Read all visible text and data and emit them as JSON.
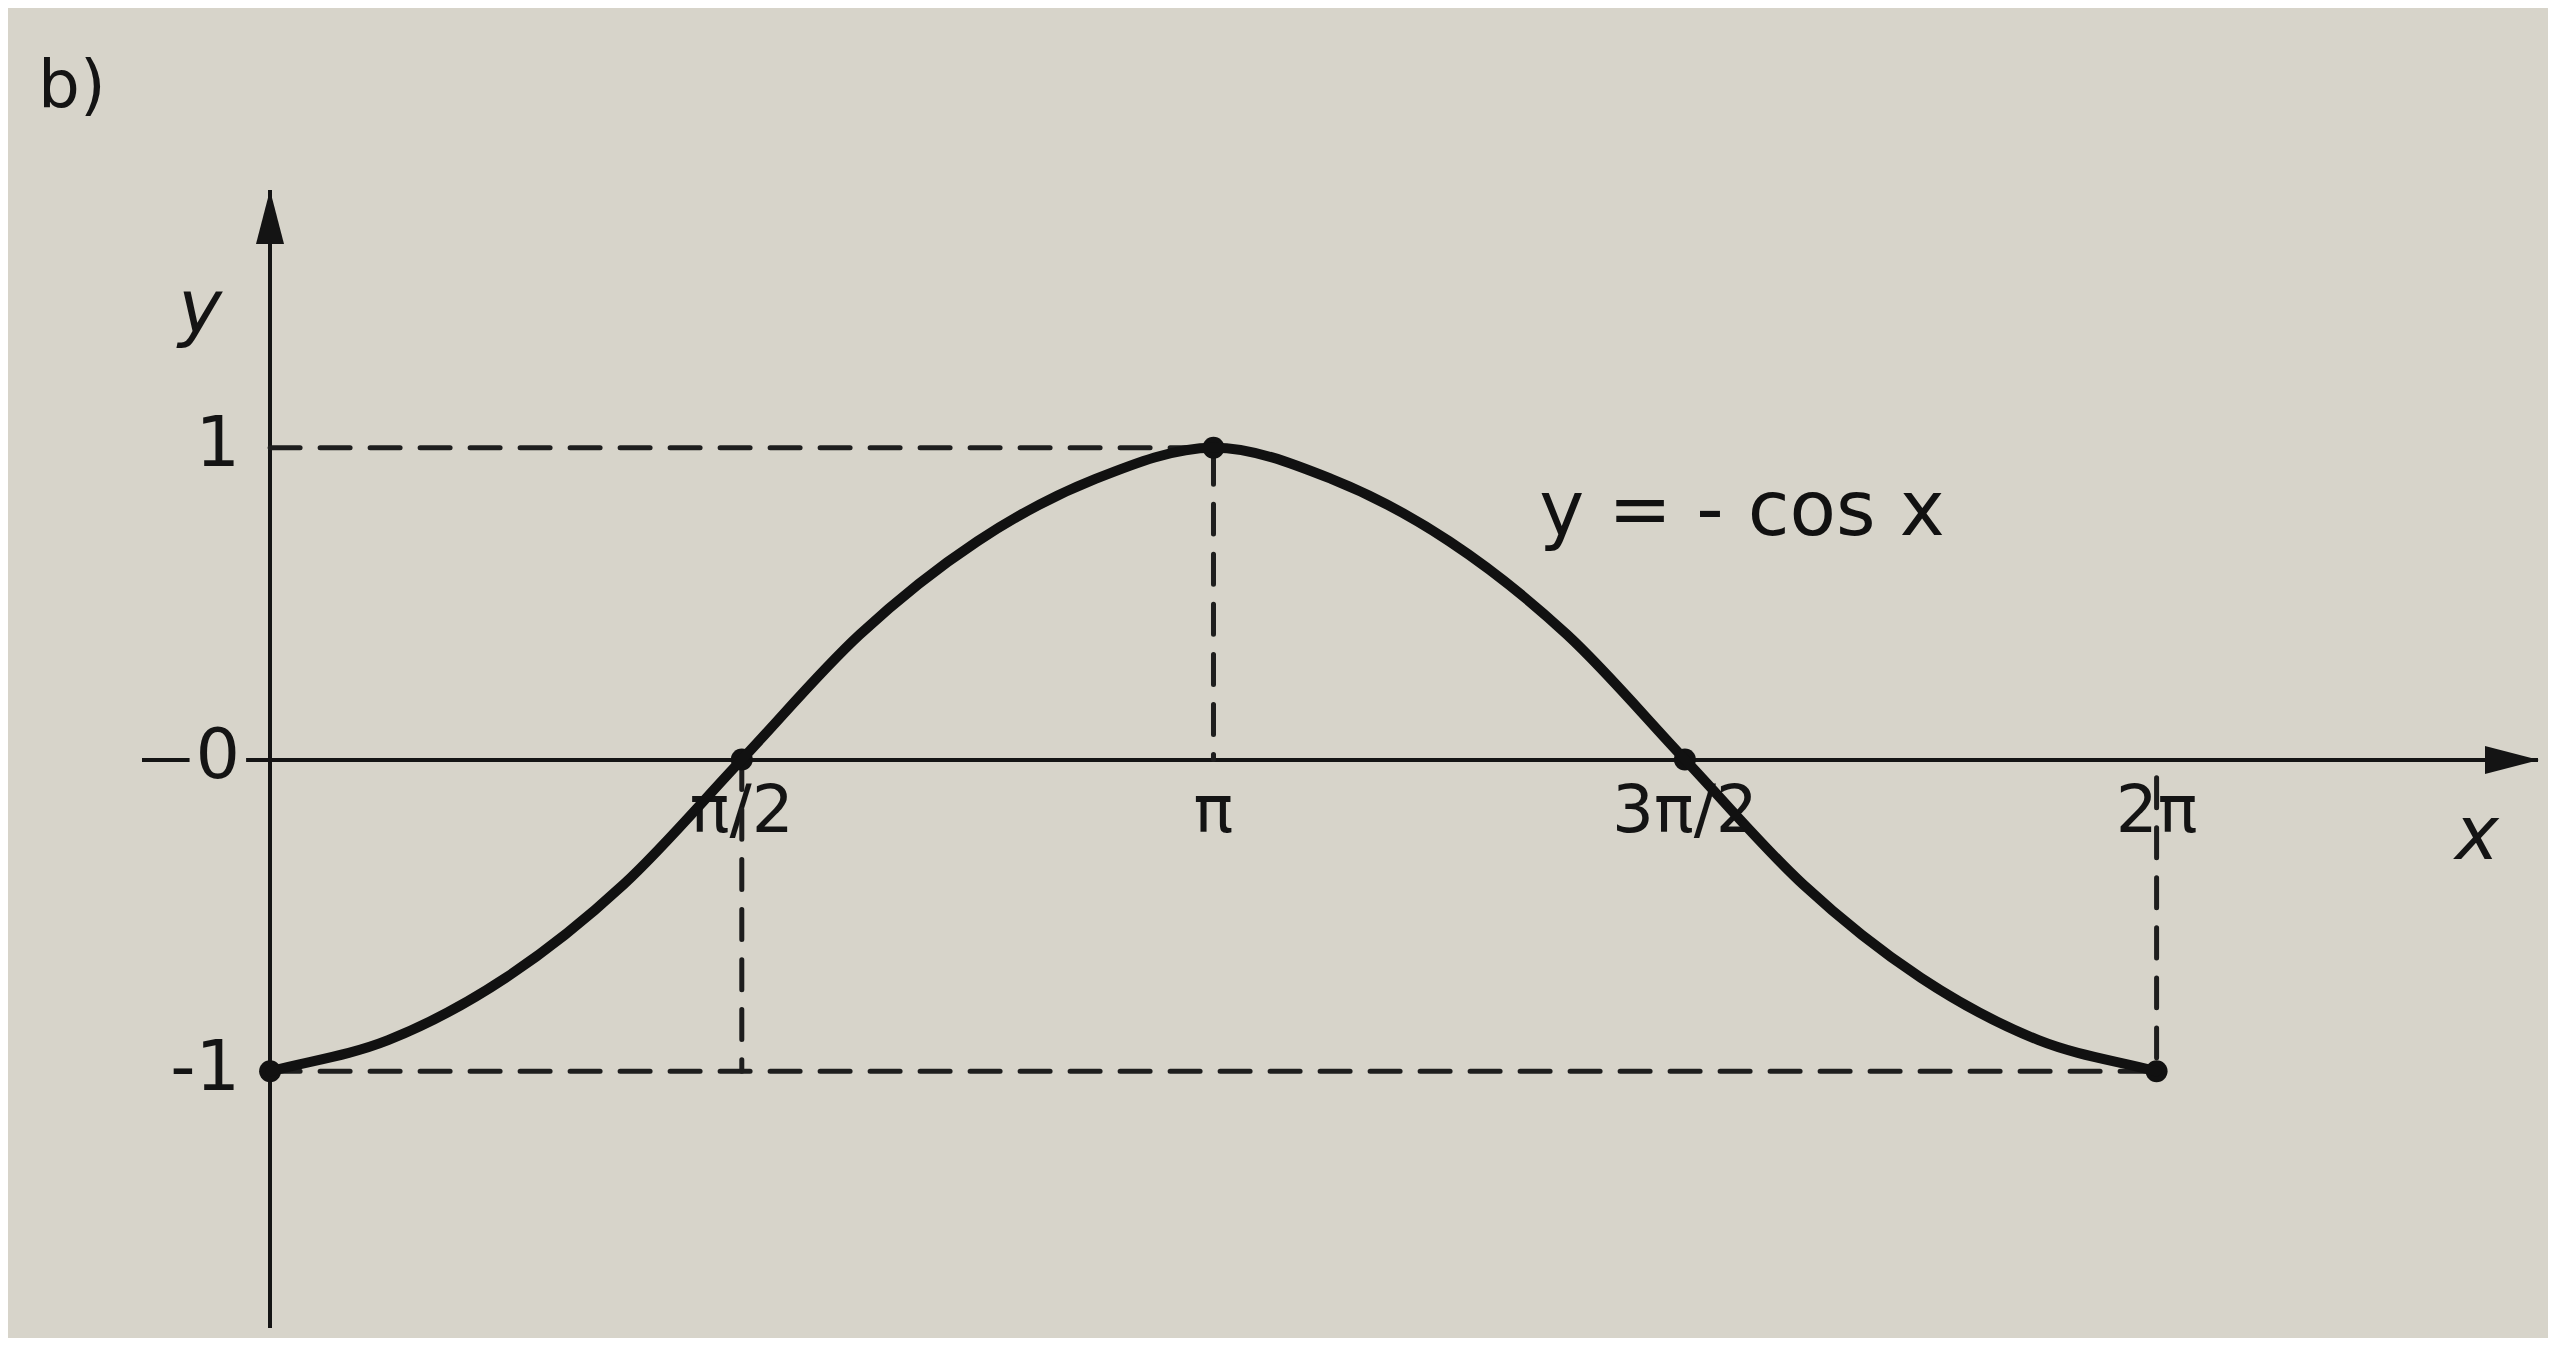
{
  "chart_data": {
    "type": "line",
    "title": "b)",
    "xlabel": "x",
    "ylabel": "y",
    "xlim": [
      -0.42,
      7.55
    ],
    "ylim": [
      -1.82,
      1.82
    ],
    "xticks": [
      {
        "value": 1.571,
        "label": "π/2"
      },
      {
        "value": 3.142,
        "label": "π"
      },
      {
        "value": 4.712,
        "label": "3π/2"
      },
      {
        "value": 6.283,
        "label": "2π"
      }
    ],
    "yticks": [
      -1,
      0,
      1
    ],
    "marker": "circle",
    "line_style": "solid",
    "series": [
      {
        "name": "y = - cos x",
        "color": "#111111",
        "marker": "none",
        "x": [
          0,
          0.393,
          0.785,
          1.178,
          1.571,
          1.963,
          2.356,
          2.749,
          3.142,
          3.534,
          3.927,
          4.32,
          4.712,
          5.105,
          5.498,
          5.89,
          6.283
        ],
        "values": [
          -1,
          -0.9,
          -0.7,
          -0.4,
          0,
          0.4,
          0.7,
          0.9,
          1,
          0.9,
          0.7,
          0.4,
          0,
          -0.4,
          -0.7,
          -0.9,
          -1
        ]
      },
      {
        "type": "scatter",
        "color": "#111111",
        "x": [
          0,
          1.571,
          3.142,
          4.712,
          6.283
        ],
        "values": [
          -1,
          0,
          1,
          0,
          -1
        ]
      },
      {
        "type": "line",
        "color": "#1e1e1e",
        "line_style": "dashed",
        "marker": "none",
        "x": [
          0,
          3.142,
          3.142
        ],
        "values": [
          1,
          1,
          0
        ]
      },
      {
        "type": "line",
        "color": "#1e1e1e",
        "line_style": "dashed",
        "marker": "none",
        "x": [
          0,
          6.283,
          6.283
        ],
        "values": [
          -1,
          -1,
          0
        ]
      },
      {
        "type": "line",
        "color": "#1e1e1e",
        "line_style": "dashed",
        "marker": "none",
        "x": [
          1.571,
          1.571
        ],
        "values": [
          0,
          -1
        ]
      }
    ]
  }
}
